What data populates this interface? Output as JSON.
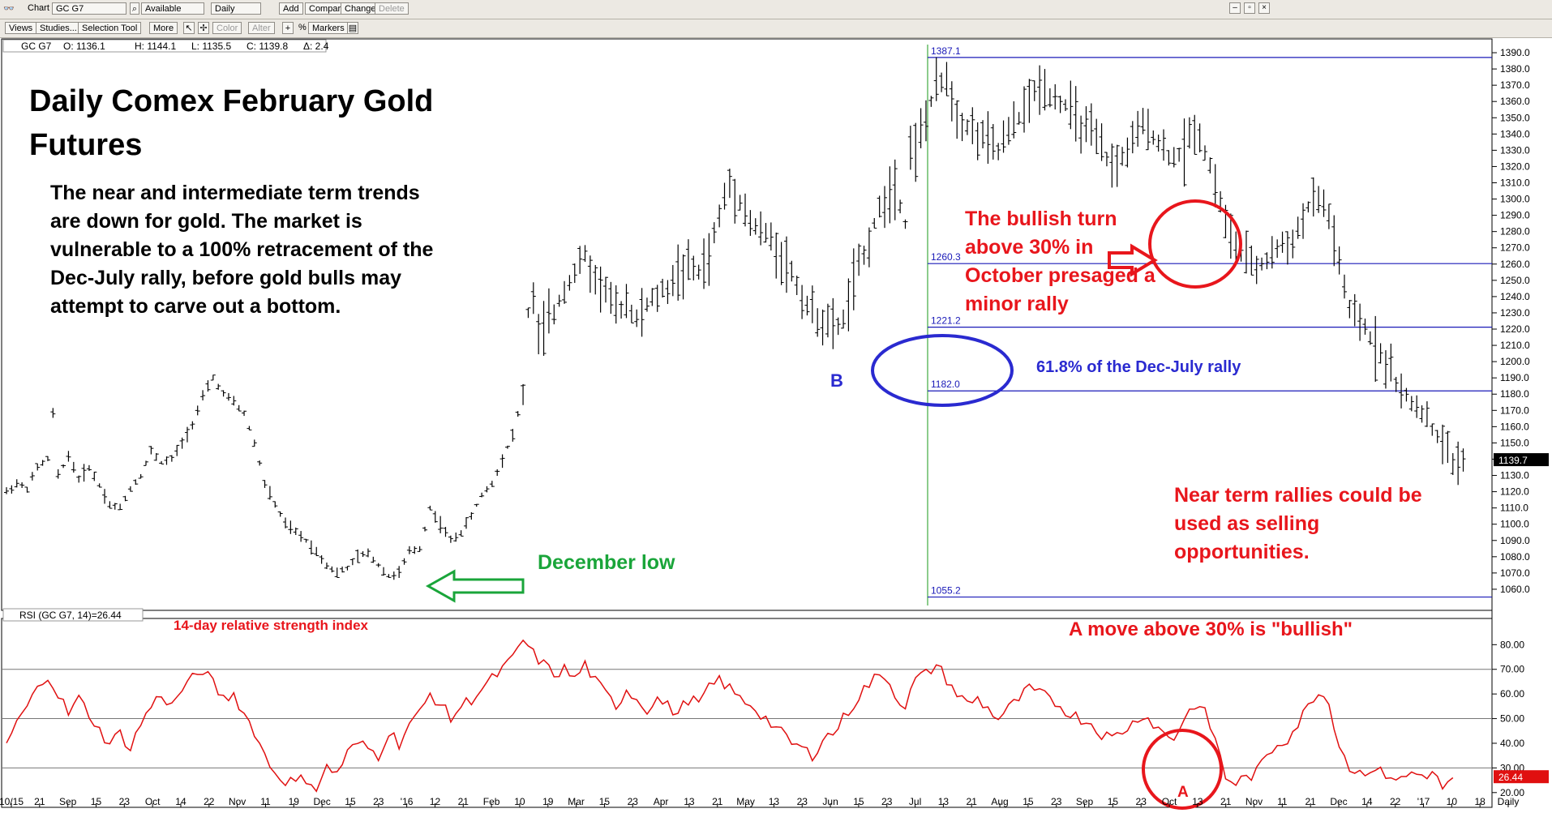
{
  "toolbar": {
    "chart_label": "Chart",
    "symbol_value": "GC G7",
    "availability_value": "Available",
    "period_value": "Daily",
    "add_label": "Add",
    "compare_label": "Compare",
    "change_label": "Change",
    "delete_label": "Delete",
    "views_label": "Views",
    "studies_label": "Studies...",
    "selection_tool_label": "Selection Tool",
    "more_label": "More",
    "color_label": "Color",
    "alter_label": "Alter",
    "percent_label": "%",
    "markers_label": "Markers"
  },
  "price_header": {
    "symbol": "GC G7",
    "open": "O: 1136.1",
    "high": "H: 1144.1",
    "low": "L: 1135.5",
    "close": "C: 1139.8",
    "delta": "Δ: 2.4"
  },
  "rsi_header": "RSI (GC G7, 14)=26.44",
  "annotations": {
    "title_line1": "Daily Comex February Gold",
    "title_line2": "Futures",
    "body_lines": [
      "The near and intermediate term trends",
      "are down for gold. The market is",
      "vulnerable to a 100% retracement of the",
      "Dec-July rally, before gold bulls may",
      "attempt to carve out a bottom."
    ],
    "bullish_turn_lines": [
      "The bullish turn",
      "above 30% in",
      "October presaged a",
      "minor rally"
    ],
    "near_term_lines": [
      "Near term rallies could be",
      "used as selling",
      "opportunities."
    ],
    "december_low": "December low",
    "fib_note": "61.8% of the Dec-July rally",
    "label_b": "B",
    "label_a": "A",
    "rsi_title": "14-day relative strength index",
    "rsi_note": "A move above 30% is \"bullish\""
  },
  "colors": {
    "price_bars": "#000000",
    "fib_lines": "#1a1ab8",
    "rsi_line": "#e01010",
    "annotation_red": "#e8161c",
    "annotation_green": "#1aa53a",
    "annotation_blue": "#2a2ad0",
    "last_price_bg": "#000000",
    "rsi_last_bg": "#e01010"
  },
  "icons": {
    "app": "glasses-icon",
    "search": "search-icon",
    "print": "printer-icon",
    "crosshair": "crosshair-icon",
    "cursor": "cursor-icon"
  },
  "chart_data": {
    "type": "ohlc",
    "price_axis": {
      "ylim": [
        1050,
        1395
      ],
      "ticks": [
        1060,
        1070,
        1080,
        1090,
        1100,
        1110,
        1120,
        1130,
        1140,
        1150,
        1160,
        1170,
        1180,
        1190,
        1200,
        1210,
        1220,
        1230,
        1240,
        1250,
        1260,
        1270,
        1280,
        1290,
        1300,
        1310,
        1320,
        1330,
        1340,
        1350,
        1360,
        1370,
        1380,
        1390
      ],
      "last_value": "1139.7"
    },
    "x_axis_labels": [
      "10/15",
      "21",
      "Sep",
      "15",
      "23",
      "Oct",
      "14",
      "22",
      "Nov",
      "11",
      "19",
      "Dec",
      "15",
      "23",
      "'16",
      "12",
      "21",
      "Feb",
      "10",
      "19",
      "Mar",
      "15",
      "23",
      "Apr",
      "13",
      "21",
      "May",
      "13",
      "23",
      "Jun",
      "15",
      "23",
      "Jul",
      "13",
      "21",
      "Aug",
      "15",
      "23",
      "Sep",
      "15",
      "23",
      "Oct",
      "13",
      "21",
      "Nov",
      "11",
      "21",
      "Dec",
      "14",
      "22",
      "'17",
      "10",
      "18",
      "Daily"
    ],
    "fibonacci": {
      "start_month": "Jul",
      "levels": [
        {
          "label": "1387.1",
          "value": 1387.1
        },
        {
          "label": "1260.3",
          "value": 1260.3
        },
        {
          "label": "1221.2",
          "value": 1221.2
        },
        {
          "label": "1182.0",
          "value": 1182.0
        },
        {
          "label": "1055.2",
          "value": 1055.2
        }
      ]
    },
    "price_path": [
      [
        0,
        1120
      ],
      [
        2,
        1125
      ],
      [
        4,
        1122
      ],
      [
        6,
        1135
      ],
      [
        8,
        1140
      ],
      [
        9,
        1168
      ],
      [
        10,
        1130
      ],
      [
        12,
        1142
      ],
      [
        14,
        1128
      ],
      [
        16,
        1135
      ],
      [
        18,
        1124
      ],
      [
        20,
        1112
      ],
      [
        22,
        1110
      ],
      [
        24,
        1122
      ],
      [
        26,
        1130
      ],
      [
        28,
        1145
      ],
      [
        30,
        1138
      ],
      [
        32,
        1140
      ],
      [
        34,
        1150
      ],
      [
        36,
        1162
      ],
      [
        38,
        1178
      ],
      [
        40,
        1190
      ],
      [
        42,
        1180
      ],
      [
        44,
        1175
      ],
      [
        46,
        1168
      ],
      [
        48,
        1150
      ],
      [
        50,
        1125
      ],
      [
        52,
        1112
      ],
      [
        54,
        1100
      ],
      [
        56,
        1095
      ],
      [
        58,
        1090
      ],
      [
        60,
        1083
      ],
      [
        62,
        1075
      ],
      [
        64,
        1070
      ],
      [
        66,
        1073
      ],
      [
        68,
        1080
      ],
      [
        70,
        1082
      ],
      [
        72,
        1075
      ],
      [
        74,
        1068
      ],
      [
        76,
        1070
      ],
      [
        78,
        1083
      ],
      [
        80,
        1085
      ],
      [
        82,
        1110
      ],
      [
        84,
        1100
      ],
      [
        86,
        1090
      ],
      [
        88,
        1095
      ],
      [
        90,
        1105
      ],
      [
        92,
        1118
      ],
      [
        94,
        1125
      ],
      [
        96,
        1140
      ],
      [
        98,
        1155
      ],
      [
        100,
        1180
      ],
      [
        101,
        1230
      ],
      [
        102,
        1240
      ],
      [
        103,
        1215
      ],
      [
        104,
        1220
      ],
      [
        106,
        1230
      ],
      [
        108,
        1245
      ],
      [
        110,
        1255
      ],
      [
        112,
        1265
      ],
      [
        114,
        1250
      ],
      [
        116,
        1245
      ],
      [
        118,
        1230
      ],
      [
        120,
        1238
      ],
      [
        122,
        1225
      ],
      [
        124,
        1235
      ],
      [
        126,
        1240
      ],
      [
        128,
        1245
      ],
      [
        130,
        1255
      ],
      [
        132,
        1258
      ],
      [
        134,
        1255
      ],
      [
        136,
        1265
      ],
      [
        138,
        1290
      ],
      [
        140,
        1310
      ],
      [
        142,
        1300
      ],
      [
        144,
        1285
      ],
      [
        146,
        1280
      ],
      [
        148,
        1275
      ],
      [
        150,
        1265
      ],
      [
        152,
        1255
      ],
      [
        154,
        1240
      ],
      [
        156,
        1230
      ],
      [
        158,
        1225
      ],
      [
        160,
        1220
      ],
      [
        162,
        1225
      ],
      [
        164,
        1250
      ],
      [
        166,
        1265
      ],
      [
        168,
        1285
      ],
      [
        170,
        1300
      ],
      [
        172,
        1310
      ],
      [
        174,
        1285
      ],
      [
        175,
        1335
      ],
      [
        176,
        1330
      ],
      [
        178,
        1350
      ],
      [
        180,
        1368
      ],
      [
        182,
        1375
      ],
      [
        184,
        1352
      ],
      [
        186,
        1345
      ],
      [
        188,
        1340
      ],
      [
        190,
        1335
      ],
      [
        192,
        1330
      ],
      [
        194,
        1340
      ],
      [
        196,
        1350
      ],
      [
        198,
        1360
      ],
      [
        200,
        1370
      ],
      [
        202,
        1365
      ],
      [
        204,
        1360
      ],
      [
        206,
        1355
      ],
      [
        208,
        1345
      ],
      [
        210,
        1340
      ],
      [
        212,
        1330
      ],
      [
        214,
        1320
      ],
      [
        216,
        1325
      ],
      [
        218,
        1335
      ],
      [
        220,
        1345
      ],
      [
        222,
        1340
      ],
      [
        224,
        1330
      ],
      [
        226,
        1325
      ],
      [
        228,
        1330
      ],
      [
        230,
        1345
      ],
      [
        232,
        1330
      ],
      [
        234,
        1310
      ],
      [
        236,
        1285
      ],
      [
        238,
        1270
      ],
      [
        240,
        1262
      ],
      [
        242,
        1258
      ],
      [
        244,
        1262
      ],
      [
        246,
        1270
      ],
      [
        248,
        1272
      ],
      [
        250,
        1280
      ],
      [
        252,
        1295
      ],
      [
        254,
        1300
      ],
      [
        256,
        1290
      ],
      [
        258,
        1260
      ],
      [
        260,
        1230
      ],
      [
        262,
        1225
      ],
      [
        264,
        1215
      ],
      [
        266,
        1205
      ],
      [
        268,
        1195
      ],
      [
        270,
        1180
      ],
      [
        272,
        1175
      ],
      [
        274,
        1170
      ],
      [
        276,
        1158
      ],
      [
        278,
        1150
      ],
      [
        280,
        1138
      ],
      [
        282,
        1140
      ]
    ],
    "rsi": {
      "ylim": [
        15,
        88
      ],
      "ticks": [
        20,
        30,
        40,
        50,
        60,
        70,
        80
      ],
      "reference_lines": [
        30,
        50,
        70
      ],
      "last_value": "26.44",
      "values": [
        [
          0,
          40
        ],
        [
          2,
          48
        ],
        [
          4,
          55
        ],
        [
          6,
          62
        ],
        [
          8,
          68
        ],
        [
          10,
          60
        ],
        [
          12,
          52
        ],
        [
          14,
          58
        ],
        [
          16,
          52
        ],
        [
          18,
          45
        ],
        [
          20,
          40
        ],
        [
          22,
          44
        ],
        [
          24,
          38
        ],
        [
          26,
          48
        ],
        [
          28,
          55
        ],
        [
          30,
          60
        ],
        [
          32,
          55
        ],
        [
          34,
          62
        ],
        [
          36,
          66
        ],
        [
          38,
          70
        ],
        [
          40,
          64
        ],
        [
          42,
          58
        ],
        [
          44,
          60
        ],
        [
          46,
          52
        ],
        [
          48,
          45
        ],
        [
          50,
          35
        ],
        [
          52,
          28
        ],
        [
          54,
          25
        ],
        [
          56,
          24
        ],
        [
          58,
          26
        ],
        [
          60,
          22
        ],
        [
          62,
          30
        ],
        [
          64,
          28
        ],
        [
          66,
          36
        ],
        [
          68,
          40
        ],
        [
          70,
          38
        ],
        [
          72,
          35
        ],
        [
          74,
          45
        ],
        [
          76,
          40
        ],
        [
          78,
          48
        ],
        [
          80,
          52
        ],
        [
          82,
          60
        ],
        [
          84,
          56
        ],
        [
          86,
          50
        ],
        [
          88,
          55
        ],
        [
          90,
          58
        ],
        [
          92,
          62
        ],
        [
          94,
          66
        ],
        [
          96,
          70
        ],
        [
          98,
          74
        ],
        [
          100,
          82
        ],
        [
          102,
          76
        ],
        [
          104,
          72
        ],
        [
          106,
          68
        ],
        [
          108,
          70
        ],
        [
          110,
          66
        ],
        [
          112,
          72
        ],
        [
          114,
          65
        ],
        [
          116,
          60
        ],
        [
          118,
          55
        ],
        [
          120,
          62
        ],
        [
          122,
          58
        ],
        [
          124,
          54
        ],
        [
          126,
          58
        ],
        [
          128,
          55
        ],
        [
          130,
          52
        ],
        [
          132,
          58
        ],
        [
          134,
          56
        ],
        [
          136,
          62
        ],
        [
          138,
          66
        ],
        [
          140,
          62
        ],
        [
          142,
          58
        ],
        [
          144,
          56
        ],
        [
          146,
          52
        ],
        [
          148,
          48
        ],
        [
          150,
          44
        ],
        [
          152,
          40
        ],
        [
          154,
          38
        ],
        [
          156,
          35
        ],
        [
          158,
          42
        ],
        [
          160,
          44
        ],
        [
          162,
          50
        ],
        [
          164,
          56
        ],
        [
          166,
          62
        ],
        [
          168,
          66
        ],
        [
          170,
          68
        ],
        [
          172,
          60
        ],
        [
          174,
          55
        ],
        [
          176,
          66
        ],
        [
          178,
          68
        ],
        [
          180,
          72
        ],
        [
          182,
          66
        ],
        [
          184,
          60
        ],
        [
          186,
          56
        ],
        [
          188,
          58
        ],
        [
          190,
          54
        ],
        [
          192,
          50
        ],
        [
          194,
          54
        ],
        [
          196,
          58
        ],
        [
          198,
          62
        ],
        [
          200,
          60
        ],
        [
          202,
          58
        ],
        [
          204,
          55
        ],
        [
          206,
          52
        ],
        [
          208,
          50
        ],
        [
          210,
          48
        ],
        [
          212,
          44
        ],
        [
          214,
          42
        ],
        [
          216,
          45
        ],
        [
          218,
          48
        ],
        [
          220,
          52
        ],
        [
          222,
          48
        ],
        [
          224,
          44
        ],
        [
          226,
          42
        ],
        [
          228,
          50
        ],
        [
          230,
          56
        ],
        [
          232,
          52
        ],
        [
          234,
          42
        ],
        [
          236,
          26
        ],
        [
          238,
          24
        ],
        [
          240,
          26
        ],
        [
          242,
          28
        ],
        [
          244,
          35
        ],
        [
          246,
          40
        ],
        [
          248,
          42
        ],
        [
          250,
          48
        ],
        [
          252,
          55
        ],
        [
          254,
          62
        ],
        [
          256,
          56
        ],
        [
          258,
          40
        ],
        [
          260,
          30
        ],
        [
          262,
          28
        ],
        [
          264,
          30
        ],
        [
          266,
          28
        ],
        [
          268,
          27
        ],
        [
          270,
          25
        ],
        [
          272,
          28
        ],
        [
          274,
          27
        ],
        [
          276,
          28
        ],
        [
          278,
          22
        ],
        [
          280,
          26
        ]
      ]
    }
  }
}
